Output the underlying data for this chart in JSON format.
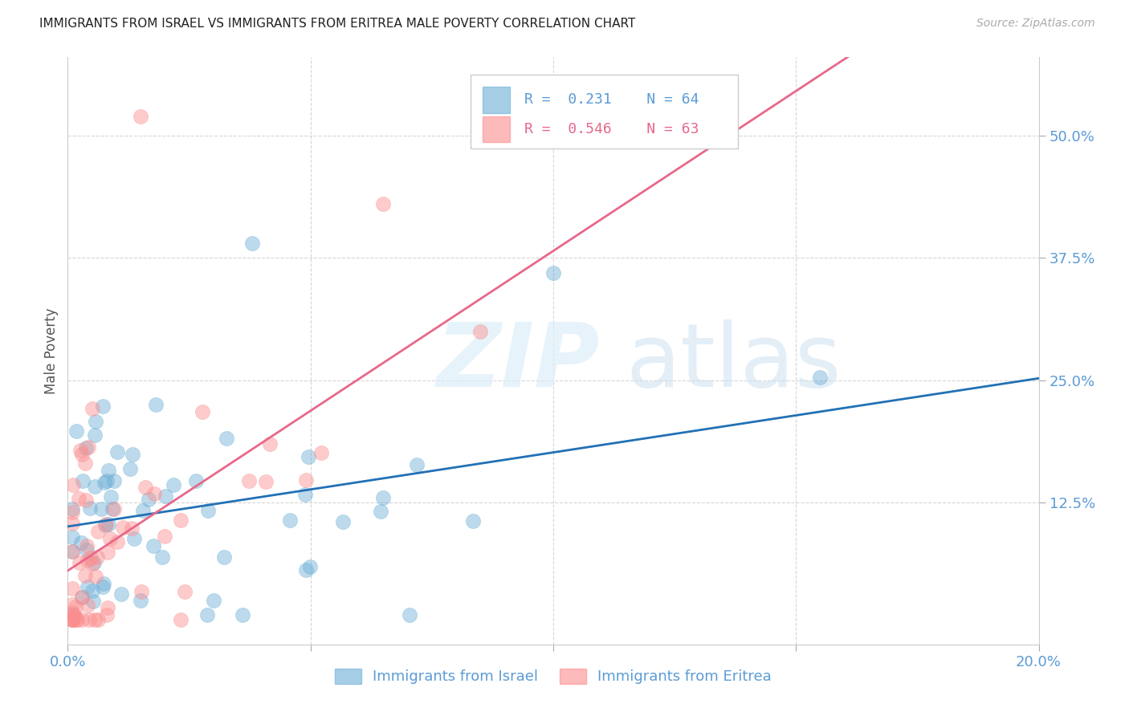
{
  "title": "IMMIGRANTS FROM ISRAEL VS IMMIGRANTS FROM ERITREA MALE POVERTY CORRELATION CHART",
  "source": "Source: ZipAtlas.com",
  "ylabel": "Male Poverty",
  "xlim": [
    0.0,
    0.2
  ],
  "ylim": [
    -0.02,
    0.58
  ],
  "xticks": [
    0.0,
    0.05,
    0.1,
    0.15,
    0.2
  ],
  "xticklabels": [
    "0.0%",
    "",
    "",
    "",
    "20.0%"
  ],
  "ytick_positions": [
    0.125,
    0.25,
    0.375,
    0.5
  ],
  "yticklabels": [
    "12.5%",
    "25.0%",
    "37.5%",
    "50.0%"
  ],
  "israel_color": "#6baed6",
  "eritrea_color": "#fc8d8d",
  "israel_line_color": "#2171b5",
  "eritrea_line_color": "#e8688a",
  "israel_R": 0.231,
  "israel_N": 64,
  "eritrea_R": 0.546,
  "eritrea_N": 63,
  "legend_label_israel": "Immigrants from Israel",
  "legend_label_eritrea": "Immigrants from Eritrea",
  "background_color": "#ffffff",
  "grid_color": "#cccccc"
}
